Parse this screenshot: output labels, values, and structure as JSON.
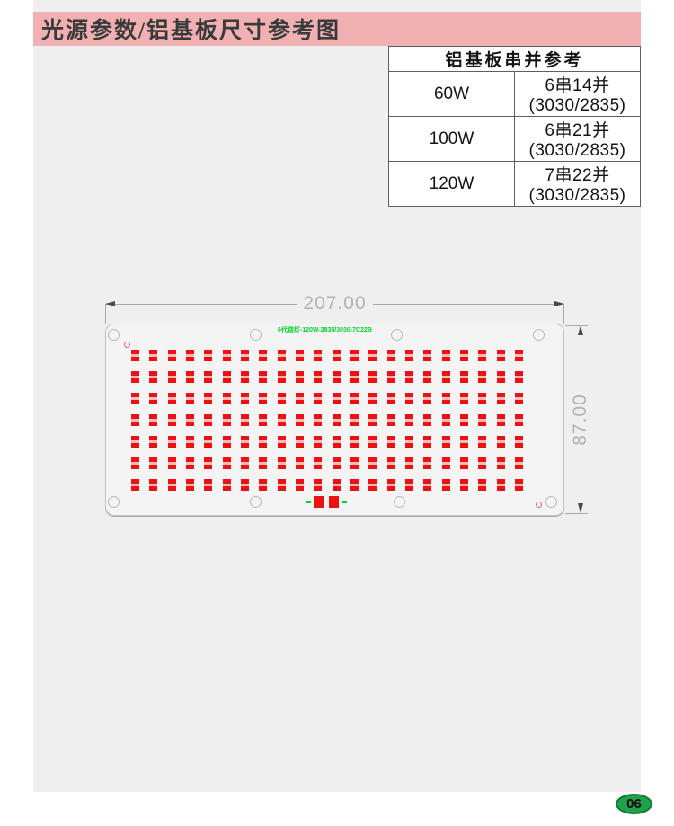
{
  "page": {
    "title": "光源参数/铝基板尺寸参考图",
    "page_number": "06"
  },
  "spec_table": {
    "header": "铝基板串并参考",
    "rows": [
      {
        "power": "60W",
        "config": "6串14并(3030/2835)"
      },
      {
        "power": "100W",
        "config": "6串21并(3030/2835)"
      },
      {
        "power": "120W",
        "config": "7串22并(3030/2835)"
      }
    ]
  },
  "drawing": {
    "width_label": "207.00",
    "height_label": "87.00",
    "silkscreen_text": "6代路灯-120W-2835/3030-7C22B",
    "led_grid": {
      "rows": 7,
      "cols": 22
    }
  },
  "theme": {
    "header_bg": "#f1b0b2",
    "content_bg": "#efefef",
    "led_red": "#ee1111",
    "silkscreen_green": "#00d22a",
    "badge_green": "#1fa24a"
  }
}
